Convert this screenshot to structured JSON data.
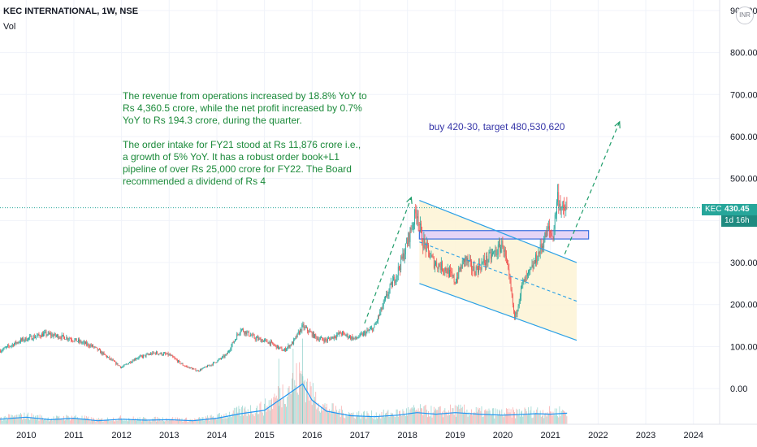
{
  "header": {
    "symbol_line": "KEC INTERNATIONAL, 1W, NSE",
    "volume_label": "Vol",
    "currency": "INR"
  },
  "annotations": {
    "fundamentals": [
      "The revenue from operations increased by 18.8% YoY to\nRs 4,360.5 crore, while the net profit increased by 0.7%\nYoY to Rs 194.3 crore, during the quarter.",
      "The order intake for FY21 stood at Rs 11,876 crore i.e.,\na growth of 5% YoY. It has a robust order book+L1\npipeline of over Rs 25,000 crore for FY22. The Board\nrecommended a dividend of Rs 4"
    ],
    "trade_plan": "buy 420-30, target 480,530,620"
  },
  "price_badge": {
    "ticker": "KEC",
    "price": "430.45",
    "countdown": "1d 16h"
  },
  "colors": {
    "up": "#26a69a",
    "down": "#ef5350",
    "volume_line": "#2196f3",
    "channel": "#2aa0e6",
    "channel_fill": "#fdf3d5",
    "support_zone": "#e5d4f6",
    "support_border": "#3a6fe0",
    "arrow": "#1f9d6a",
    "price_line": "#26a69a"
  },
  "chart_data": {
    "type": "candlestick",
    "interval": "1W",
    "y_axis": {
      "range": [
        -85,
        925
      ],
      "ticks": [
        0,
        100,
        200,
        300,
        400,
        500,
        600,
        700,
        800,
        900
      ],
      "tick_labels": [
        "0.00",
        "100.00",
        "200.00",
        "300.00",
        "400.00",
        "500.00",
        "600.00",
        "700.00",
        "800.00",
        "900.00"
      ]
    },
    "x_axis": {
      "range": [
        2009.45,
        2024.55
      ],
      "ticks": [
        2010,
        2011,
        2012,
        2013,
        2014,
        2015,
        2016,
        2017,
        2018,
        2019,
        2020,
        2021,
        2022,
        2023,
        2024
      ],
      "tick_labels": [
        "2010",
        "2011",
        "2012",
        "2013",
        "2014",
        "2015",
        "2016",
        "2017",
        "2018",
        "2019",
        "2020",
        "2021",
        "2022",
        "2023",
        "2024"
      ]
    },
    "price_path": [
      [
        2009.45,
        90
      ],
      [
        2009.9,
        115
      ],
      [
        2010.4,
        130
      ],
      [
        2010.9,
        120
      ],
      [
        2011.4,
        100
      ],
      [
        2011.7,
        75
      ],
      [
        2012.0,
        50
      ],
      [
        2012.3,
        72
      ],
      [
        2012.7,
        85
      ],
      [
        2013.0,
        80
      ],
      [
        2013.3,
        55
      ],
      [
        2013.6,
        42
      ],
      [
        2013.9,
        58
      ],
      [
        2014.2,
        80
      ],
      [
        2014.5,
        142
      ],
      [
        2014.8,
        120
      ],
      [
        2015.1,
        110
      ],
      [
        2015.4,
        90
      ],
      [
        2015.6,
        110
      ],
      [
        2015.8,
        148
      ],
      [
        2016.1,
        120
      ],
      [
        2016.3,
        115
      ],
      [
        2016.6,
        132
      ],
      [
        2016.9,
        118
      ],
      [
        2017.3,
        145
      ],
      [
        2017.6,
        230
      ],
      [
        2017.8,
        280
      ],
      [
        2017.95,
        330
      ],
      [
        2018.1,
        390
      ],
      [
        2018.2,
        425
      ],
      [
        2018.3,
        355
      ],
      [
        2018.55,
        300
      ],
      [
        2018.8,
        285
      ],
      [
        2019.0,
        255
      ],
      [
        2019.2,
        310
      ],
      [
        2019.4,
        280
      ],
      [
        2019.6,
        300
      ],
      [
        2019.9,
        330
      ],
      [
        2020.0,
        345
      ],
      [
        2020.15,
        250
      ],
      [
        2020.25,
        165
      ],
      [
        2020.4,
        245
      ],
      [
        2020.6,
        282
      ],
      [
        2020.8,
        335
      ],
      [
        2020.95,
        380
      ],
      [
        2021.05,
        360
      ],
      [
        2021.15,
        460
      ],
      [
        2021.25,
        420
      ],
      [
        2021.35,
        430.45
      ]
    ],
    "volume": {
      "label": "Vol",
      "baseline": -85,
      "path": [
        [
          2009.45,
          20
        ],
        [
          2010.0,
          28
        ],
        [
          2010.5,
          18
        ],
        [
          2011.0,
          24
        ],
        [
          2011.5,
          14
        ],
        [
          2012.0,
          20
        ],
        [
          2012.5,
          16
        ],
        [
          2013.0,
          18
        ],
        [
          2013.5,
          14
        ],
        [
          2014.0,
          24
        ],
        [
          2014.5,
          42
        ],
        [
          2015.0,
          55
        ],
        [
          2015.5,
          120
        ],
        [
          2015.8,
          160
        ],
        [
          2016.0,
          95
        ],
        [
          2016.3,
          52
        ],
        [
          2016.8,
          34
        ],
        [
          2017.3,
          30
        ],
        [
          2017.8,
          36
        ],
        [
          2018.2,
          46
        ],
        [
          2018.6,
          40
        ],
        [
          2019.0,
          46
        ],
        [
          2019.5,
          40
        ],
        [
          2020.0,
          36
        ],
        [
          2020.3,
          38
        ],
        [
          2020.7,
          42
        ],
        [
          2021.0,
          40
        ],
        [
          2021.35,
          44
        ]
      ],
      "spikes": [
        [
          2015.3,
          260
        ],
        [
          2015.6,
          300
        ],
        [
          2015.8,
          340
        ]
      ]
    },
    "channel": {
      "upper": [
        [
          2018.25,
          448
        ],
        [
          2021.55,
          300
        ]
      ],
      "lower": [
        [
          2018.25,
          250
        ],
        [
          2021.55,
          115
        ]
      ],
      "mid": [
        [
          2018.25,
          349
        ],
        [
          2021.55,
          208
        ]
      ]
    },
    "support_zone": {
      "x": [
        2018.25,
        2021.8
      ],
      "y": [
        356,
        376
      ]
    },
    "arrows": [
      {
        "from": [
          2017.1,
          155
        ],
        "to": [
          2018.08,
          455
        ]
      },
      {
        "from": [
          2021.3,
          320
        ],
        "to": [
          2022.45,
          635
        ]
      }
    ],
    "last_price": 430.45
  }
}
